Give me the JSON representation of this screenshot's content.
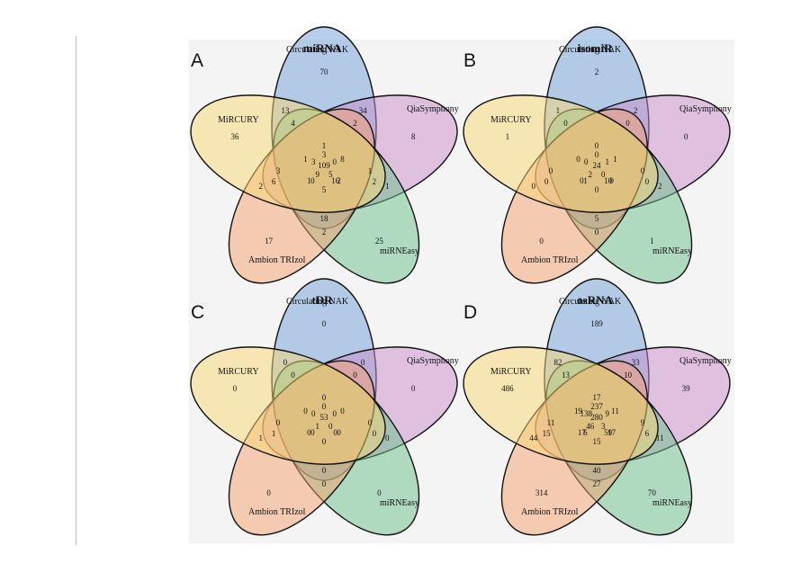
{
  "figure": {
    "set_labels": [
      "Circulating NAK",
      "QiaSymphony",
      "miRNEasy",
      "Ambion TRIzol",
      "MiRCURY"
    ],
    "set_colors": [
      "#6f9fd8",
      "#c98dc9",
      "#6cc08a",
      "#f4a06e",
      "#f7d774"
    ],
    "panels": [
      {
        "letter": "A",
        "title": "miRNA",
        "values": [
          "70",
          "8",
          "25",
          "17",
          "36",
          "34",
          "1",
          "2",
          "2",
          "13",
          "0",
          "5",
          "9",
          "3",
          "3",
          "8",
          "16",
          "0",
          "1",
          "1",
          "2",
          "2",
          "18",
          "6",
          "4",
          "5",
          "1",
          "3",
          "1",
          "2",
          "109"
        ]
      },
      {
        "letter": "B",
        "title": "isomiR",
        "values": [
          "2",
          "0",
          "1",
          "0",
          "1",
          "2",
          "2",
          "0",
          "0",
          "1",
          "1",
          "0",
          "2",
          "0",
          "0",
          "1",
          "10",
          "1",
          "0",
          "0",
          "0",
          "0",
          "5",
          "0",
          "0",
          "0",
          "0",
          "0",
          "0",
          "0",
          "24"
        ]
      },
      {
        "letter": "C",
        "title": "tDR",
        "values": [
          "0",
          "0",
          "0",
          "0",
          "0",
          "0",
          "0",
          "0",
          "1",
          "0",
          "0",
          "0",
          "1",
          "0",
          "0",
          "0",
          "0",
          "0",
          "0",
          "0",
          "0",
          "0",
          "0",
          "1",
          "0",
          "0",
          "0",
          "0",
          "0",
          "0",
          "53"
        ]
      },
      {
        "letter": "D",
        "title": "osRNA",
        "values": [
          "189",
          "39",
          "70",
          "314",
          "486",
          "33",
          "11",
          "27",
          "44",
          "82",
          "9",
          "3",
          "46",
          "138",
          "237",
          "11",
          "59",
          "6",
          "19",
          "17",
          "10",
          "6",
          "40",
          "15",
          "13",
          "15",
          "17",
          "11",
          "9",
          "17",
          "280"
        ]
      }
    ]
  }
}
